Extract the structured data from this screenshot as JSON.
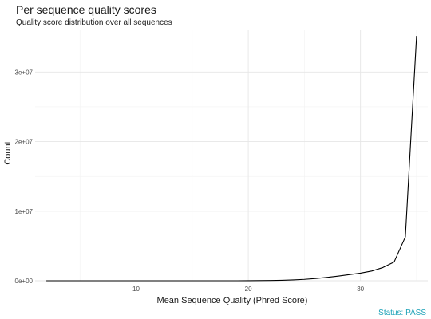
{
  "title": "Per sequence quality scores",
  "subtitle": "Quality score distribution over all sequences",
  "status": {
    "text": "Status: PASS",
    "color": "#1fa3b8"
  },
  "chart_data": {
    "type": "line",
    "title": "Per sequence quality scores",
    "subtitle": "Quality score distribution over all sequences",
    "xlabel": "Mean Sequence Quality (Phred Score)",
    "ylabel": "Count",
    "xlim": [
      1,
      36
    ],
    "ylim": [
      0,
      36000000
    ],
    "x_ticks": [
      10,
      20,
      30
    ],
    "y_ticks": [
      0,
      10000000,
      20000000,
      30000000
    ],
    "x_tick_labels": [
      "10",
      "20",
      "30"
    ],
    "y_tick_labels": [
      "0e+00",
      "1e+07",
      "2e+07",
      "3e+07"
    ],
    "grid": true,
    "legend": "none",
    "line_color": "#000000",
    "x": [
      2,
      3,
      4,
      5,
      6,
      7,
      8,
      9,
      10,
      11,
      12,
      13,
      14,
      15,
      16,
      17,
      18,
      19,
      20,
      21,
      22,
      23,
      24,
      25,
      26,
      27,
      28,
      29,
      30,
      31,
      32,
      33,
      34,
      35
    ],
    "y": [
      0,
      0,
      0,
      0,
      0,
      0,
      0,
      0,
      0,
      0,
      0,
      0,
      0,
      0,
      0,
      0,
      0,
      0,
      10000,
      20000,
      40000,
      70000,
      120000,
      200000,
      320000,
      480000,
      670000,
      880000,
      1100000,
      1400000,
      1900000,
      2700000,
      6300000,
      35200000
    ]
  }
}
